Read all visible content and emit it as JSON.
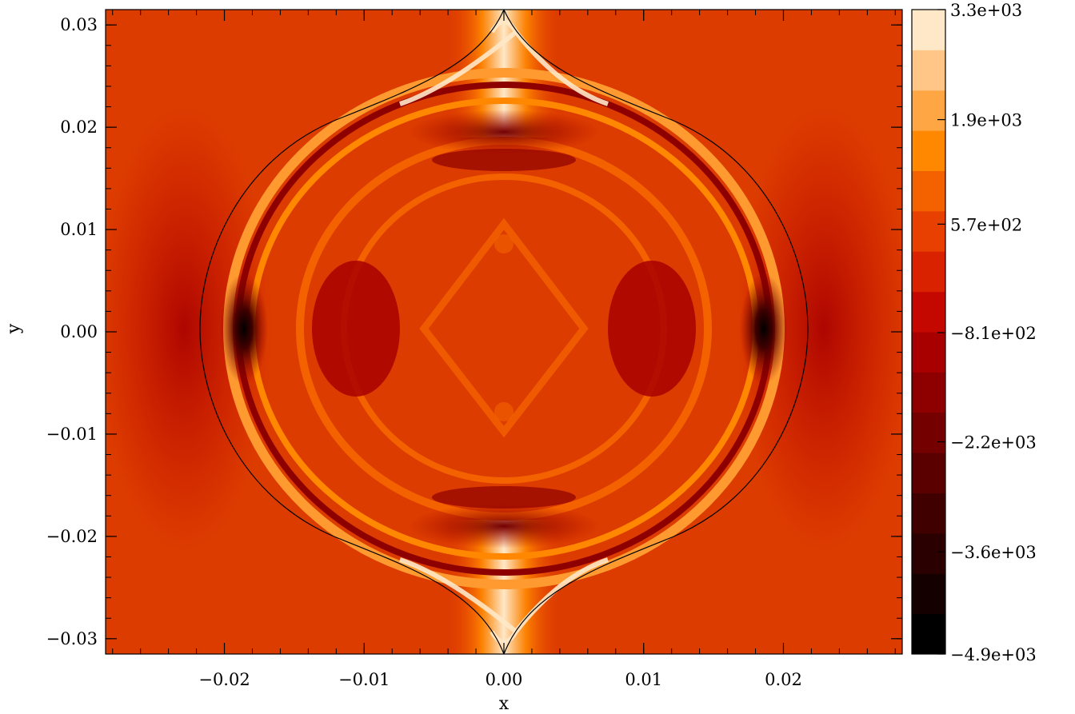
{
  "chart_data": {
    "type": "heatmap",
    "title": "",
    "xlabel": "x",
    "ylabel": "y",
    "xlim": [
      -0.0285,
      0.0285
    ],
    "ylim": [
      -0.0315,
      0.0315
    ],
    "xticks": [
      {
        "value": -0.02,
        "label": "−0.02"
      },
      {
        "value": -0.01,
        "label": "−0.01"
      },
      {
        "value": 0.0,
        "label": "0.00"
      },
      {
        "value": 0.01,
        "label": "0.01"
      },
      {
        "value": 0.02,
        "label": "0.02"
      }
    ],
    "yticks": [
      {
        "value": 0.03,
        "label": "0.03"
      },
      {
        "value": 0.02,
        "label": "0.02"
      },
      {
        "value": 0.01,
        "label": "0.01"
      },
      {
        "value": 0.0,
        "label": "0.00"
      },
      {
        "value": -0.01,
        "label": "−0.01"
      },
      {
        "value": -0.02,
        "label": "−0.02"
      },
      {
        "value": -0.03,
        "label": "−0.03"
      }
    ],
    "colorbar": {
      "min": -4900,
      "max": 3300,
      "levels": 16,
      "tick_labels": [
        {
          "value": 3300,
          "label": "3.3e+03"
        },
        {
          "value": 1900,
          "label": "1.9e+03"
        },
        {
          "value": 570,
          "label": "5.7e+02"
        },
        {
          "value": -810,
          "label": "−8.1e+02"
        },
        {
          "value": -2200,
          "label": "−2.2e+03"
        },
        {
          "value": -3600,
          "label": "−3.6e+03"
        },
        {
          "value": -4900,
          "label": "−4.9e+03"
        }
      ],
      "colors": [
        "#000000",
        "#150000",
        "#2a0000",
        "#400000",
        "#5a0000",
        "#740000",
        "#8e0000",
        "#a80000",
        "#c40800",
        "#d92200",
        "#e84000",
        "#f46200",
        "#ff8800",
        "#ffa644",
        "#ffc688",
        "#ffe8c8"
      ]
    },
    "background_color": "#dc3c00",
    "boundary_curve": "lens",
    "grid": false,
    "legend": "none"
  }
}
